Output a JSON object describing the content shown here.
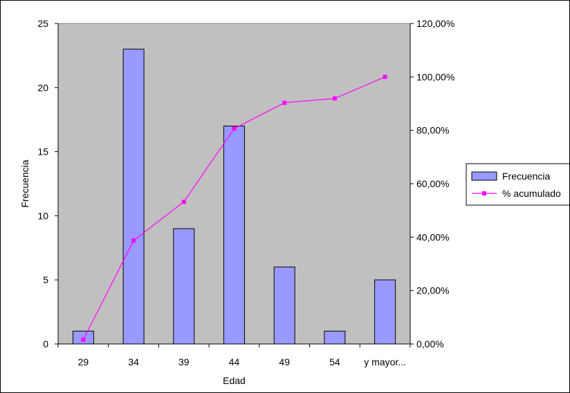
{
  "chart_data": {
    "type": "bar",
    "categories": [
      "29",
      "34",
      "39",
      "44",
      "49",
      "54",
      "y mayor..."
    ],
    "series": [
      {
        "name": "Frecuencia",
        "type": "bar",
        "axis": "left",
        "values": [
          1,
          23,
          9,
          17,
          6,
          1,
          5
        ]
      },
      {
        "name": "% acumulado",
        "type": "line",
        "axis": "right",
        "values": [
          1.61,
          38.71,
          53.23,
          80.65,
          90.32,
          91.94,
          100.0
        ]
      }
    ],
    "xlabel": "Edad",
    "ylabel": "Frecuencia",
    "ylim": [
      0,
      25
    ],
    "yticks": [
      "0",
      "5",
      "10",
      "15",
      "20",
      "25"
    ],
    "ylim_right": [
      0,
      120
    ],
    "yticks_right": [
      "0,00%",
      "20,00%",
      "40,00%",
      "60,00%",
      "80,00%",
      "100,00%",
      "120,00%"
    ],
    "grid": false,
    "legend_position": "right",
    "colors": {
      "plot_background": "#c0c0c0",
      "bar_fill": "#9999ff",
      "bar_stroke": "#000000",
      "line": "#ff00ff",
      "marker": "#ff00ff"
    }
  }
}
